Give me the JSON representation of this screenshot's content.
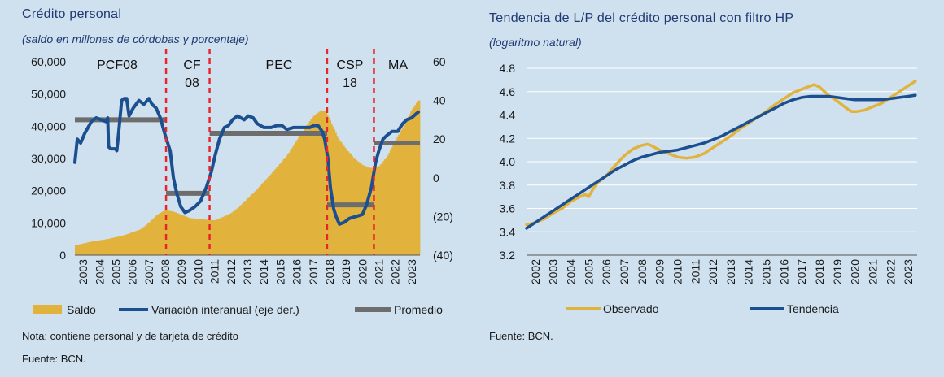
{
  "left": {
    "title": "Crédito personal",
    "subtitle": "(saldo en millones de córdobas y porcentaje)",
    "note": "Nota: contiene personal y de tarjeta de crédito",
    "source": "Fuente: BCN."
  },
  "right": {
    "title": "Tendencia de L/P del crédito personal con filtro HP",
    "subtitle": "(logaritmo natural)",
    "source": "Fuente: BCN."
  },
  "colors": {
    "gold": "#e2b33c",
    "blue": "#1c4f8f",
    "gray": "#6d6d6d",
    "red": "#e8252b"
  },
  "chart_data": [
    {
      "type": "bar",
      "x_start": 2003.0,
      "x_end": 2024.0,
      "x_ticks": [
        "2003",
        "2004",
        "2005",
        "2006",
        "2007",
        "2008",
        "2009",
        "2010",
        "2011",
        "2012",
        "2013",
        "2014",
        "2015",
        "2016",
        "2017",
        "2018",
        "2019",
        "2020",
        "2021",
        "2022",
        "2023"
      ],
      "y_left_ticks": [
        "0",
        "10,000",
        "20,000",
        "30,000",
        "40,000",
        "50,000",
        "60,000"
      ],
      "y_left_lim": [
        0,
        60000
      ],
      "y_right_ticks": [
        "(40)",
        "(20)",
        "0",
        "20",
        "40",
        "60"
      ],
      "y_right_lim": [
        -40,
        60
      ],
      "series": [
        {
          "name": "Saldo",
          "axis": "left",
          "points": [
            [
              2003.0,
              3000
            ],
            [
              2004.0,
              4200
            ],
            [
              2005.0,
              5000
            ],
            [
              2006.0,
              6200
            ],
            [
              2007.0,
              8000
            ],
            [
              2007.5,
              10000
            ],
            [
              2008.0,
              12500
            ],
            [
              2008.5,
              14000
            ],
            [
              2009.0,
              13500
            ],
            [
              2009.5,
              12500
            ],
            [
              2010.0,
              11500
            ],
            [
              2011.0,
              11000
            ],
            [
              2011.5,
              10800
            ],
            [
              2012.0,
              11800
            ],
            [
              2012.5,
              13000
            ],
            [
              2013.0,
              15000
            ],
            [
              2014.0,
              20000
            ],
            [
              2015.0,
              25500
            ],
            [
              2016.0,
              31500
            ],
            [
              2016.5,
              35500
            ],
            [
              2017.0,
              39500
            ],
            [
              2017.5,
              43000
            ],
            [
              2018.0,
              45000
            ],
            [
              2018.3,
              44500
            ],
            [
              2018.7,
              40000
            ],
            [
              2019.0,
              36500
            ],
            [
              2019.5,
              33000
            ],
            [
              2020.0,
              30000
            ],
            [
              2020.5,
              28000
            ],
            [
              2021.0,
              27000
            ],
            [
              2021.5,
              27500
            ],
            [
              2022.0,
              30500
            ],
            [
              2022.5,
              35500
            ],
            [
              2023.0,
              40000
            ],
            [
              2023.5,
              45000
            ],
            [
              2023.9,
              48000
            ]
          ]
        },
        {
          "name": "Variación interanual (eje der.)",
          "axis": "right",
          "points": [
            [
              2003.0,
              8
            ],
            [
              2003.15,
              20
            ],
            [
              2003.35,
              18
            ],
            [
              2003.6,
              23
            ],
            [
              2004.0,
              29
            ],
            [
              2004.3,
              31
            ],
            [
              2004.6,
              30
            ],
            [
              2004.9,
              29
            ],
            [
              2005.0,
              31
            ],
            [
              2005.05,
              16
            ],
            [
              2005.2,
              15
            ],
            [
              2005.45,
              15
            ],
            [
              2005.55,
              14
            ],
            [
              2005.65,
              22
            ],
            [
              2005.85,
              40
            ],
            [
              2006.0,
              41
            ],
            [
              2006.15,
              41
            ],
            [
              2006.3,
              32
            ],
            [
              2006.55,
              36
            ],
            [
              2006.9,
              40
            ],
            [
              2007.2,
              38
            ],
            [
              2007.5,
              41
            ],
            [
              2007.7,
              38
            ],
            [
              2007.95,
              36
            ],
            [
              2008.2,
              31
            ],
            [
              2008.5,
              22
            ],
            [
              2008.8,
              14
            ],
            [
              2009.0,
              0
            ],
            [
              2009.2,
              -8
            ],
            [
              2009.45,
              -15
            ],
            [
              2009.7,
              -18
            ],
            [
              2009.95,
              -17
            ],
            [
              2010.3,
              -15
            ],
            [
              2010.65,
              -12
            ],
            [
              2011.0,
              -5
            ],
            [
              2011.3,
              3
            ],
            [
              2011.55,
              12
            ],
            [
              2011.8,
              20
            ],
            [
              2012.1,
              26
            ],
            [
              2012.35,
              27
            ],
            [
              2012.6,
              30
            ],
            [
              2012.9,
              32
            ],
            [
              2013.1,
              31
            ],
            [
              2013.3,
              30
            ],
            [
              2013.55,
              32
            ],
            [
              2013.85,
              31
            ],
            [
              2014.1,
              28
            ],
            [
              2014.5,
              26
            ],
            [
              2014.95,
              26
            ],
            [
              2015.3,
              27
            ],
            [
              2015.6,
              27
            ],
            [
              2015.9,
              25
            ],
            [
              2016.3,
              26
            ],
            [
              2016.7,
              26
            ],
            [
              2016.95,
              26
            ],
            [
              2017.3,
              26
            ],
            [
              2017.55,
              27
            ],
            [
              2017.8,
              27
            ],
            [
              2018.05,
              24
            ],
            [
              2018.2,
              20
            ],
            [
              2018.4,
              10
            ],
            [
              2018.55,
              -5
            ],
            [
              2018.75,
              -16
            ],
            [
              2018.9,
              -20
            ],
            [
              2019.1,
              -24
            ],
            [
              2019.4,
              -23
            ],
            [
              2019.7,
              -21
            ],
            [
              2020.1,
              -20
            ],
            [
              2020.5,
              -19
            ],
            [
              2020.75,
              -14
            ],
            [
              2021.05,
              -5
            ],
            [
              2021.3,
              8
            ],
            [
              2021.5,
              14
            ],
            [
              2021.75,
              20
            ],
            [
              2022.0,
              22
            ],
            [
              2022.3,
              24
            ],
            [
              2022.65,
              24
            ],
            [
              2022.95,
              28
            ],
            [
              2023.2,
              30
            ],
            [
              2023.5,
              31
            ],
            [
              2023.75,
              33
            ],
            [
              2023.9,
              34
            ]
          ]
        },
        {
          "name": "Promedio",
          "axis": "right",
          "segments": [
            [
              2003.0,
              2008.55,
              30
            ],
            [
              2008.55,
              2011.2,
              -8
            ],
            [
              2011.2,
              2018.35,
              23
            ],
            [
              2018.35,
              2021.2,
              -14
            ],
            [
              2021.2,
              2024.0,
              18
            ]
          ]
        }
      ],
      "period_dividers": [
        2008.55,
        2011.2,
        2018.35,
        2021.2
      ],
      "period_labels": [
        {
          "text": "PCF08"
        },
        {
          "text": "CF\n08"
        },
        {
          "text": "PEC"
        },
        {
          "text": "CSP\n18"
        },
        {
          "text": "MA"
        }
      ],
      "legend": [
        "Saldo",
        "Variación interanual (eje der.)",
        "Promedio"
      ]
    },
    {
      "type": "line",
      "x_start": 2002.0,
      "x_end": 2024.0,
      "x_ticks": [
        "2002",
        "2003",
        "2004",
        "2005",
        "2006",
        "2007",
        "2008",
        "2009",
        "2010",
        "2011",
        "2012",
        "2013",
        "2014",
        "2015",
        "2016",
        "2017",
        "2018",
        "2019",
        "2020",
        "2021",
        "2022",
        "2023"
      ],
      "y_ticks": [
        "3.2",
        "3.4",
        "3.6",
        "3.8",
        "4.0",
        "4.2",
        "4.4",
        "4.6",
        "4.8"
      ],
      "y_lim": [
        3.2,
        4.8
      ],
      "series": [
        {
          "name": "Observado",
          "points": [
            [
              2002.0,
              3.46
            ],
            [
              2002.5,
              3.48
            ],
            [
              2003.0,
              3.51
            ],
            [
              2003.5,
              3.56
            ],
            [
              2004.0,
              3.6
            ],
            [
              2004.5,
              3.66
            ],
            [
              2005.0,
              3.7
            ],
            [
              2005.3,
              3.72
            ],
            [
              2005.5,
              3.7
            ],
            [
              2005.8,
              3.78
            ],
            [
              2006.0,
              3.82
            ],
            [
              2006.5,
              3.88
            ],
            [
              2007.0,
              3.97
            ],
            [
              2007.5,
              4.05
            ],
            [
              2008.0,
              4.11
            ],
            [
              2008.5,
              4.14
            ],
            [
              2008.8,
              4.15
            ],
            [
              2009.0,
              4.14
            ],
            [
              2009.5,
              4.1
            ],
            [
              2010.0,
              4.07
            ],
            [
              2010.5,
              4.04
            ],
            [
              2011.0,
              4.03
            ],
            [
              2011.5,
              4.04
            ],
            [
              2012.0,
              4.07
            ],
            [
              2012.5,
              4.12
            ],
            [
              2013.0,
              4.17
            ],
            [
              2013.5,
              4.22
            ],
            [
              2014.0,
              4.28
            ],
            [
              2014.5,
              4.33
            ],
            [
              2015.0,
              4.38
            ],
            [
              2015.5,
              4.43
            ],
            [
              2016.0,
              4.49
            ],
            [
              2016.5,
              4.54
            ],
            [
              2017.0,
              4.59
            ],
            [
              2017.5,
              4.62
            ],
            [
              2018.0,
              4.65
            ],
            [
              2018.2,
              4.66
            ],
            [
              2018.5,
              4.64
            ],
            [
              2019.0,
              4.57
            ],
            [
              2019.5,
              4.52
            ],
            [
              2020.0,
              4.46
            ],
            [
              2020.3,
              4.43
            ],
            [
              2020.6,
              4.43
            ],
            [
              2021.0,
              4.44
            ],
            [
              2021.5,
              4.47
            ],
            [
              2022.0,
              4.5
            ],
            [
              2022.5,
              4.55
            ],
            [
              2023.0,
              4.6
            ],
            [
              2023.5,
              4.65
            ],
            [
              2023.9,
              4.69
            ]
          ]
        },
        {
          "name": "Tendencia",
          "points": [
            [
              2002.0,
              3.43
            ],
            [
              2002.5,
              3.48
            ],
            [
              2003.0,
              3.53
            ],
            [
              2003.5,
              3.58
            ],
            [
              2004.0,
              3.63
            ],
            [
              2004.5,
              3.68
            ],
            [
              2005.0,
              3.73
            ],
            [
              2005.5,
              3.78
            ],
            [
              2006.0,
              3.83
            ],
            [
              2006.5,
              3.88
            ],
            [
              2007.0,
              3.93
            ],
            [
              2007.5,
              3.97
            ],
            [
              2008.0,
              4.01
            ],
            [
              2008.5,
              4.04
            ],
            [
              2009.0,
              4.06
            ],
            [
              2009.5,
              4.08
            ],
            [
              2010.0,
              4.09
            ],
            [
              2010.5,
              4.1
            ],
            [
              2011.0,
              4.12
            ],
            [
              2011.5,
              4.14
            ],
            [
              2012.0,
              4.16
            ],
            [
              2012.5,
              4.19
            ],
            [
              2013.0,
              4.22
            ],
            [
              2013.5,
              4.26
            ],
            [
              2014.0,
              4.3
            ],
            [
              2014.5,
              4.34
            ],
            [
              2015.0,
              4.38
            ],
            [
              2015.5,
              4.42
            ],
            [
              2016.0,
              4.46
            ],
            [
              2016.5,
              4.5
            ],
            [
              2017.0,
              4.53
            ],
            [
              2017.5,
              4.55
            ],
            [
              2018.0,
              4.56
            ],
            [
              2018.5,
              4.56
            ],
            [
              2019.0,
              4.56
            ],
            [
              2019.5,
              4.55
            ],
            [
              2020.0,
              4.54
            ],
            [
              2020.5,
              4.53
            ],
            [
              2021.0,
              4.53
            ],
            [
              2021.5,
              4.53
            ],
            [
              2022.0,
              4.53
            ],
            [
              2022.5,
              4.54
            ],
            [
              2023.0,
              4.55
            ],
            [
              2023.5,
              4.56
            ],
            [
              2023.9,
              4.57
            ]
          ]
        }
      ],
      "legend": [
        "Observado",
        "Tendencia"
      ]
    }
  ]
}
